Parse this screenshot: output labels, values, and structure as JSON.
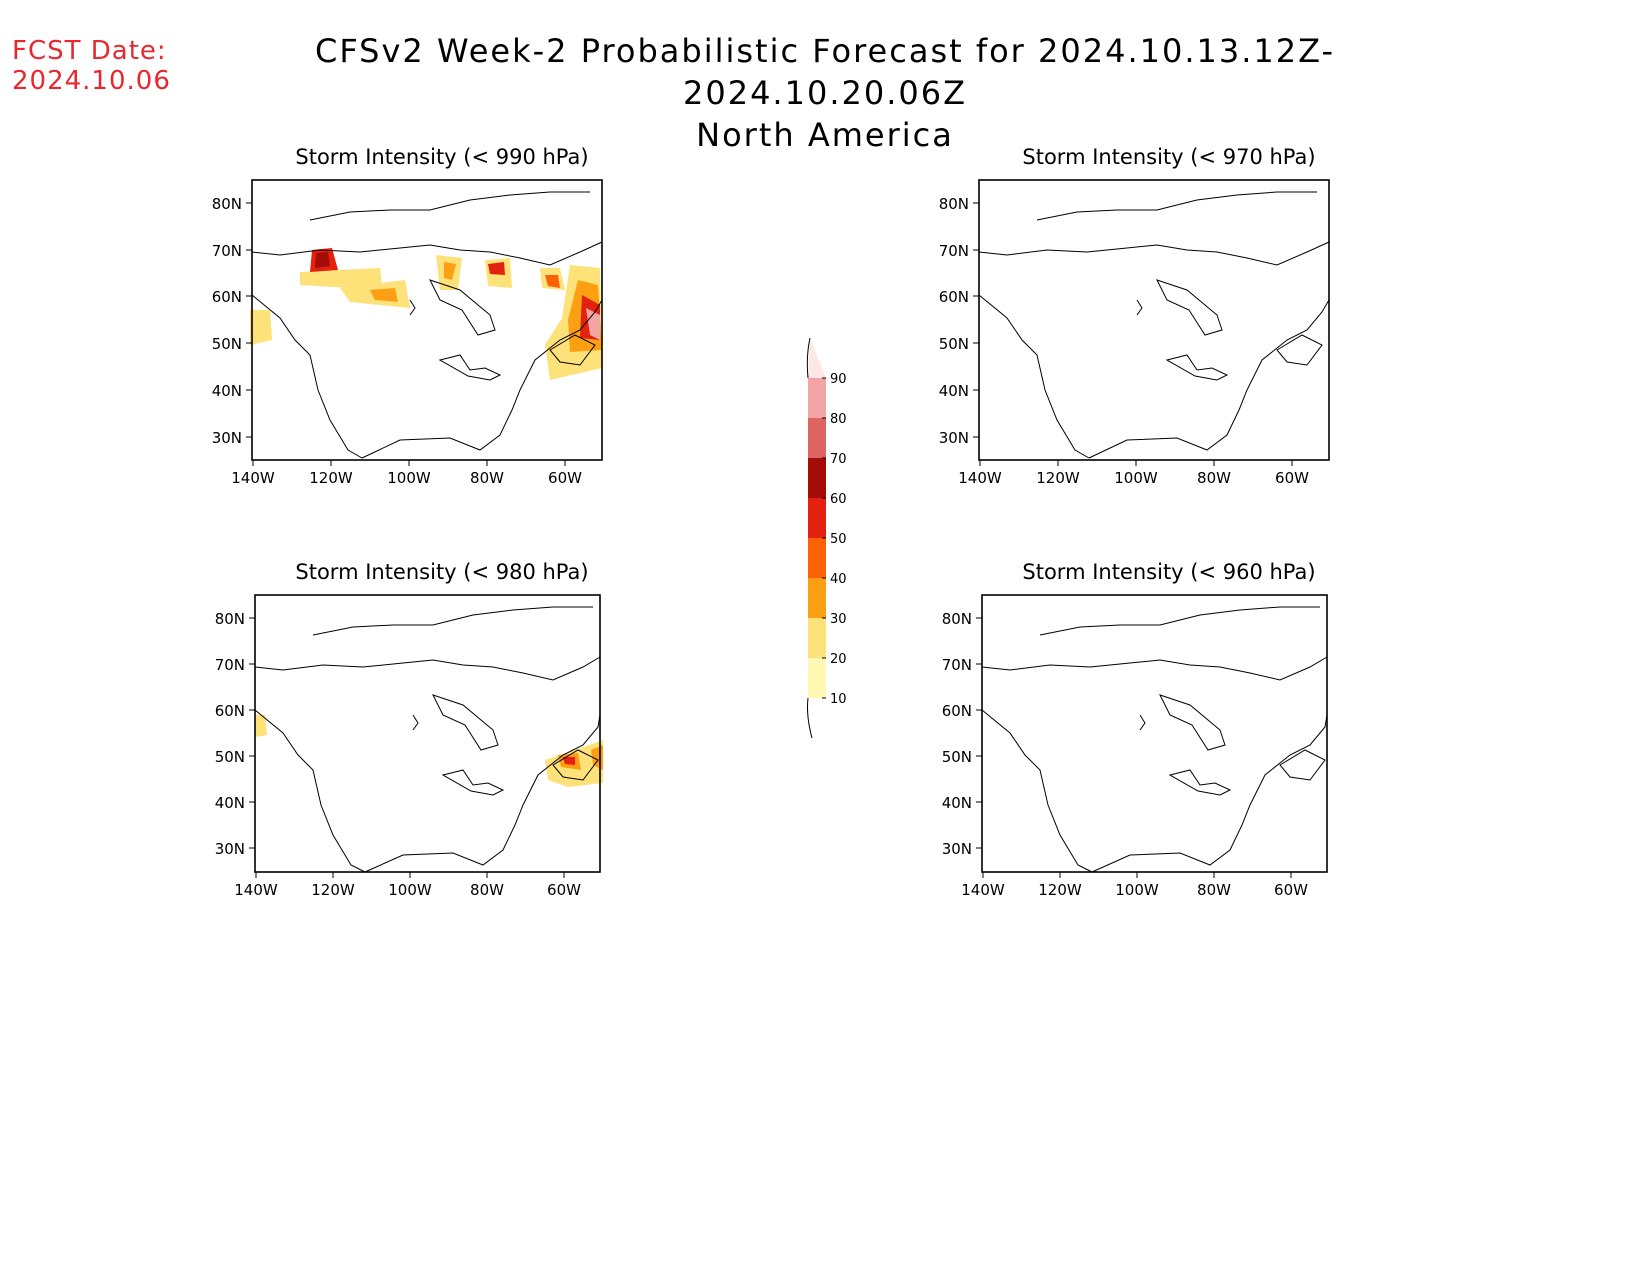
{
  "header": {
    "fcst_label": "FCST Date:",
    "fcst_date": "2024.10.06",
    "title_line1": "CFSv2 Week-2 Probabilistic Forecast for 2024.10.13.12Z-2024.10.20.06Z",
    "title_line2": "North America"
  },
  "axes": {
    "lat_ticks": [
      "30N",
      "40N",
      "50N",
      "60N",
      "70N",
      "80N"
    ],
    "lon_ticks": [
      "140W",
      "120W",
      "100W",
      "80W",
      "60W"
    ]
  },
  "panels": [
    {
      "id": "p990",
      "title": "Storm Intensity (< 990 hPa)"
    },
    {
      "id": "p970",
      "title": "Storm Intensity (< 970 hPa)"
    },
    {
      "id": "p980",
      "title": "Storm Intensity (< 980 hPa)"
    },
    {
      "id": "p960",
      "title": "Storm Intensity (< 960 hPa)"
    }
  ],
  "colorbar": {
    "levels": [
      "10",
      "20",
      "30",
      "40",
      "50",
      "60",
      "70",
      "80",
      "90"
    ],
    "colors": [
      "#fff9b4",
      "#fde27a",
      "#fc9f12",
      "#fc6105",
      "#e3210e",
      "#a50b07",
      "#de6462",
      "#f3a4a4",
      "#fde6e6"
    ]
  }
}
